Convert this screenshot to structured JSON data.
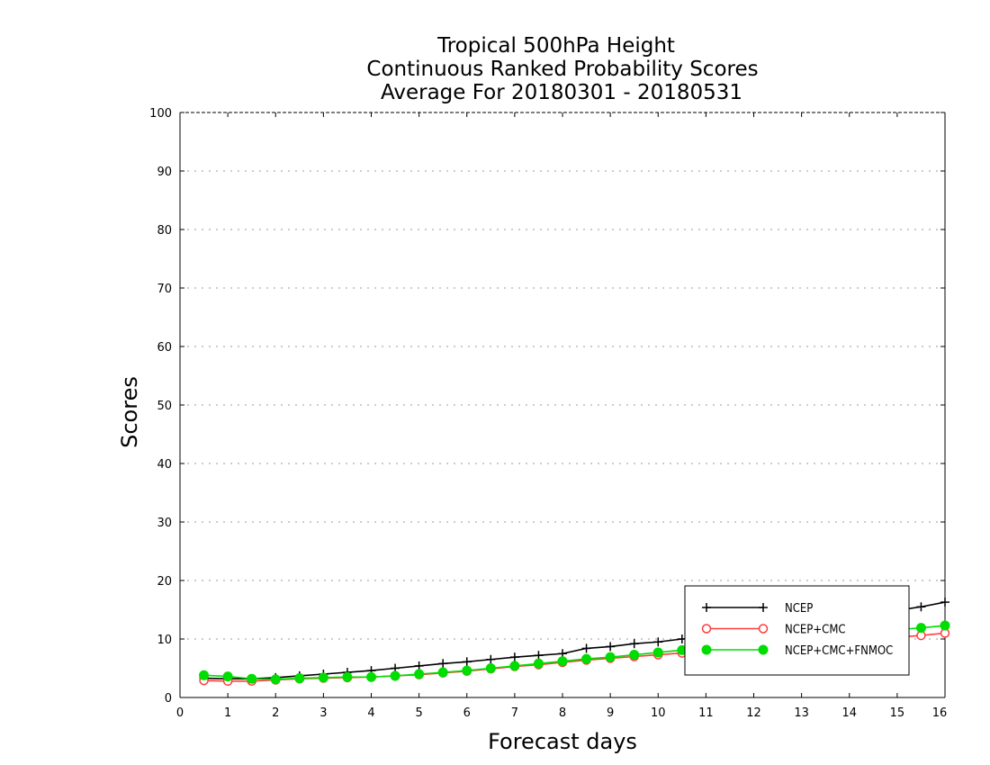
{
  "chart_data": {
    "type": "line",
    "title_lines": [
      "Tropical 500hPa Height",
      "Continuous Ranked Probability Scores",
      "Average For 20180301 - 20180531"
    ],
    "xlabel": "Forecast days",
    "ylabel": "Scores",
    "xlim": [
      0,
      16
    ],
    "ylim": [
      0,
      100
    ],
    "x_ticks": [
      0,
      1,
      2,
      3,
      4,
      5,
      6,
      7,
      8,
      9,
      10,
      11,
      12,
      13,
      14,
      15,
      16
    ],
    "y_ticks": [
      0,
      10,
      20,
      30,
      40,
      50,
      60,
      70,
      80,
      90,
      100
    ],
    "grid": "horizontal dotted",
    "legend_position": "bottom-right",
    "x": [
      0.5,
      1.0,
      1.5,
      2.0,
      2.5,
      3.0,
      3.5,
      4.0,
      4.5,
      5.0,
      5.5,
      6.0,
      6.5,
      7.0,
      7.5,
      8.0,
      8.5,
      9.0,
      9.5,
      10.0,
      10.5,
      11.0,
      11.5,
      12.0,
      12.5,
      13.0,
      13.5,
      14.0,
      14.5,
      15.0,
      15.5,
      16.0
    ],
    "series": [
      {
        "name": "NCEP",
        "color": "#000000",
        "marker": "plus",
        "values": [
          3.3,
          3.2,
          3.2,
          3.4,
          3.7,
          4.0,
          4.3,
          4.6,
          5.0,
          5.4,
          5.8,
          6.1,
          6.5,
          6.9,
          7.2,
          7.5,
          8.4,
          8.7,
          9.2,
          9.5,
          10.0,
          10.4,
          10.9,
          11.4,
          11.9,
          12.4,
          13.0,
          13.6,
          14.2,
          14.9,
          15.5,
          16.3
        ]
      },
      {
        "name": "NCEP+CMC",
        "color": "#ff3b3b",
        "marker": "open-circle",
        "values": [
          2.9,
          2.8,
          2.8,
          3.0,
          3.2,
          3.3,
          3.4,
          3.5,
          3.7,
          3.9,
          4.2,
          4.5,
          4.9,
          5.3,
          5.6,
          6.0,
          6.4,
          6.7,
          7.0,
          7.3,
          7.6,
          7.9,
          8.2,
          8.5,
          8.8,
          9.1,
          9.4,
          9.7,
          10.0,
          10.3,
          10.6,
          11.0
        ]
      },
      {
        "name": "NCEP+CMC+FNMOC",
        "color": "#00dd00",
        "marker": "filled-circle",
        "values": [
          3.8,
          3.6,
          3.2,
          3.1,
          3.3,
          3.4,
          3.5,
          3.5,
          3.7,
          4.0,
          4.3,
          4.6,
          5.0,
          5.4,
          5.8,
          6.2,
          6.6,
          6.9,
          7.3,
          7.7,
          8.1,
          8.5,
          8.9,
          9.3,
          9.7,
          10.1,
          10.5,
          10.9,
          11.3,
          11.6,
          11.9,
          12.3
        ]
      }
    ]
  }
}
